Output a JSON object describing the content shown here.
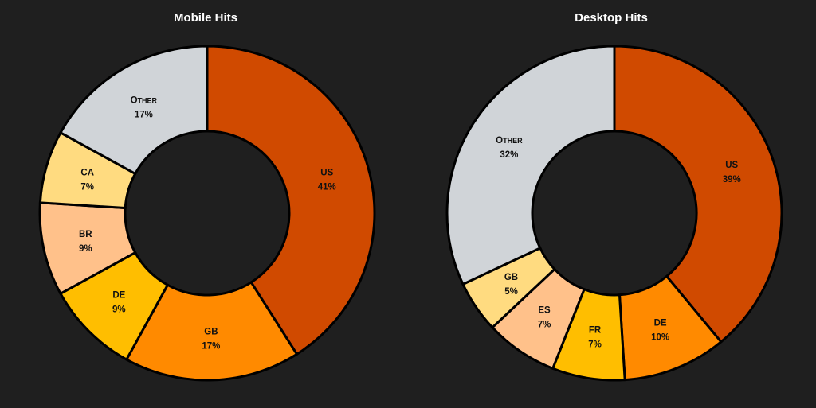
{
  "chart_data": [
    {
      "type": "pie",
      "title": "Mobile Hits",
      "categories": [
        "US",
        "GB",
        "DE",
        "BR",
        "CA",
        "Other"
      ],
      "values": [
        41,
        17,
        9,
        9,
        7,
        17
      ],
      "value_labels": [
        "41%",
        "17%",
        "9%",
        "9%",
        "7%",
        "17%"
      ],
      "colors": [
        "#d04a00",
        "#ff8a00",
        "#ffbe00",
        "#ffc18a",
        "#ffdb80",
        "#d0d4d8"
      ],
      "donut": true,
      "legend": "none"
    },
    {
      "type": "pie",
      "title": "Desktop Hits",
      "categories": [
        "US",
        "DE",
        "FR",
        "ES",
        "GB",
        "Other"
      ],
      "values": [
        39,
        10,
        7,
        7,
        5,
        32
      ],
      "value_labels": [
        "39%",
        "10%",
        "7%",
        "7%",
        "5%",
        "32%"
      ],
      "colors": [
        "#d04a00",
        "#ff8a00",
        "#ffbe00",
        "#ffc18a",
        "#ffdb80",
        "#d0d4d8"
      ],
      "donut": true,
      "legend": "none"
    }
  ],
  "style": {
    "background": "#1f1f1f",
    "title_color": "#ffffff",
    "outline_color": "#000000",
    "label_color": "#111111"
  }
}
